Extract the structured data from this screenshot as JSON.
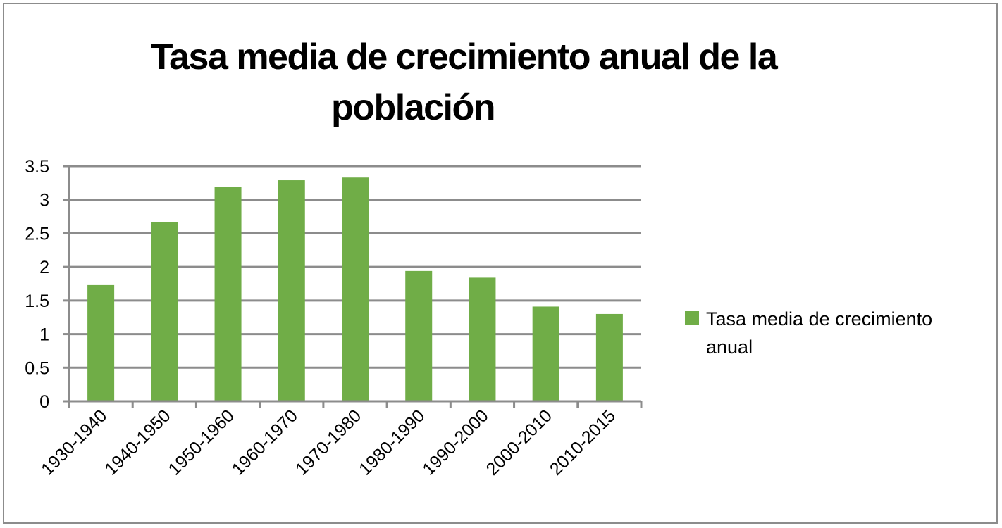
{
  "chart_data": {
    "type": "bar",
    "title_lines": [
      "Tasa media de crecimiento anual de la",
      "población"
    ],
    "categories": [
      "1930-1940",
      "1940-1950",
      "1950-1960",
      "1960-1970",
      "1970-1980",
      "1980-1990",
      "1990-2000",
      "2000-2010",
      "2010-2015"
    ],
    "series": [
      {
        "name": "Tasa media de crecimiento anual",
        "values": [
          1.73,
          2.67,
          3.19,
          3.29,
          3.33,
          1.94,
          1.84,
          1.41,
          1.3
        ],
        "color": "#70ad47"
      }
    ],
    "legend_lines": [
      "Tasa media de crecimiento",
      "anual"
    ],
    "yticks": [
      "0",
      "0.5",
      "1",
      "1.5",
      "2",
      "2.5",
      "3",
      "3.5"
    ],
    "ylim": [
      0,
      3.5
    ],
    "ytick_step": 0.5,
    "grid": true,
    "legend_position": "right",
    "gridline_color": "#8c8c8c"
  }
}
